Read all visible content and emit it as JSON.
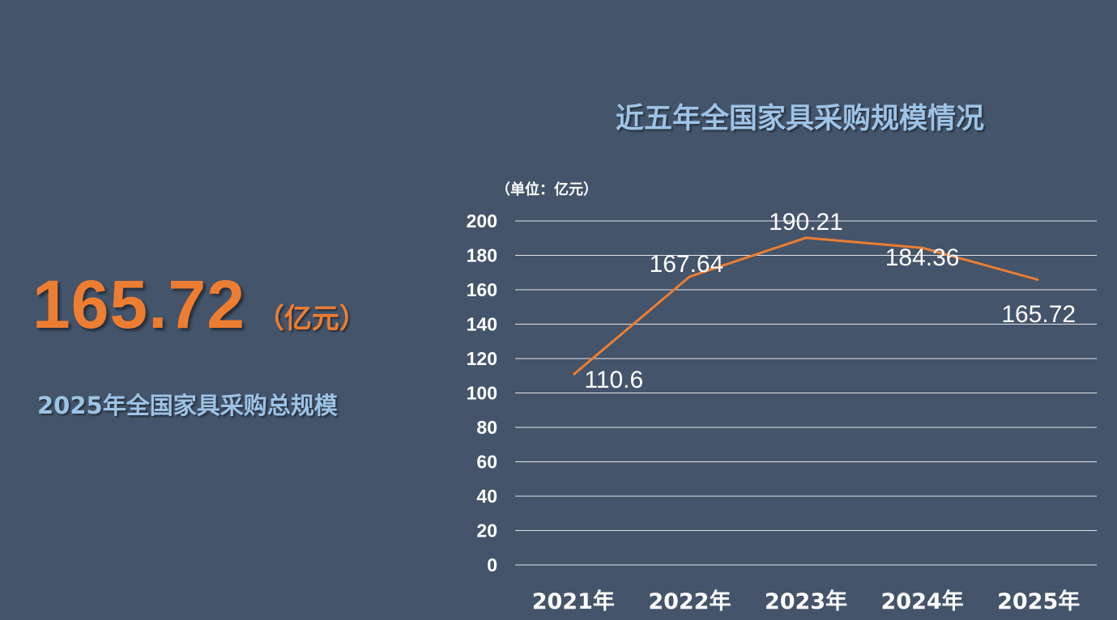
{
  "headline": {
    "value": "165.72",
    "unit": "（亿元）",
    "caption": "2025年全国家具采购总规模"
  },
  "colors": {
    "background": "#44546a",
    "accent": "#ed7d31",
    "title": "#9dc3e6",
    "text": "#ffffff"
  },
  "chart_data": {
    "type": "line",
    "title": "近五年全国家具采购规模情况",
    "unit_note": "（单位：亿元）",
    "categories": [
      "2021年",
      "2022年",
      "2023年",
      "2024年",
      "2025年"
    ],
    "series": [
      {
        "values": [
          110.6,
          167.64,
          190.21,
          184.36,
          165.72
        ]
      }
    ],
    "data_labels": [
      "110.6",
      "167.64",
      "190.21",
      "184.36",
      "165.72"
    ],
    "yticks": [
      0,
      20,
      40,
      60,
      80,
      100,
      120,
      140,
      160,
      180,
      200
    ],
    "ylim": [
      0,
      200
    ],
    "grid": true,
    "legend": "none"
  }
}
